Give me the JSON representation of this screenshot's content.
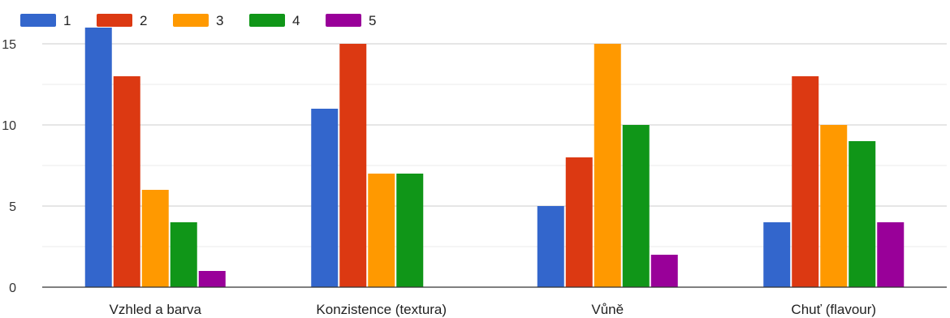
{
  "chart_data": {
    "type": "bar",
    "categories": [
      "Vzhled a barva",
      "Konzistence (textura)",
      "Vůně",
      "Chuť (flavour)"
    ],
    "series": [
      {
        "name": "1",
        "color": "#3366cc",
        "values": [
          16,
          11,
          5,
          4
        ]
      },
      {
        "name": "2",
        "color": "#dc3912",
        "values": [
          13,
          15,
          8,
          13
        ]
      },
      {
        "name": "3",
        "color": "#ff9900",
        "values": [
          6,
          7,
          15,
          10
        ]
      },
      {
        "name": "4",
        "color": "#109618",
        "values": [
          4,
          7,
          10,
          9
        ]
      },
      {
        "name": "5",
        "color": "#990099",
        "values": [
          1,
          0,
          2,
          4
        ]
      }
    ],
    "yticks": [
      0,
      5,
      10,
      15
    ],
    "ylim": [
      0,
      17
    ],
    "grid": true,
    "legend": "top-left"
  }
}
